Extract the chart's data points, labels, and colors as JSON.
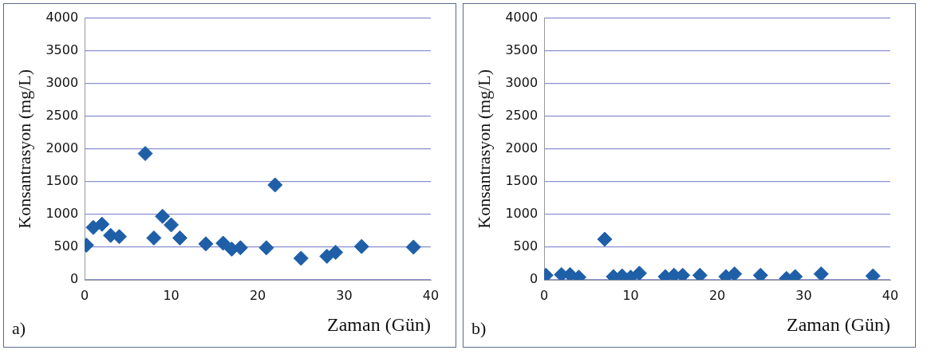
{
  "chart_data": [
    {
      "type": "scatter",
      "xlabel": "Zaman (Gün)",
      "ylabel": "Konsantrasyon (mg/L)",
      "annotations": [
        "a)"
      ],
      "x": [
        0.2,
        1,
        2,
        3,
        4,
        7,
        8,
        9,
        10,
        11,
        14,
        16,
        17,
        18,
        21,
        22,
        25,
        28,
        29,
        32,
        38
      ],
      "values": [
        530,
        800,
        850,
        680,
        660,
        1930,
        640,
        970,
        840,
        640,
        550,
        560,
        470,
        490,
        490,
        1450,
        330,
        360,
        420,
        510,
        500
      ],
      "color": "#1f5fa8",
      "marker": "diamond",
      "xlim": [
        0,
        40
      ],
      "xticks": [
        0,
        10,
        20,
        30,
        40
      ],
      "ylim": [
        0,
        4000
      ],
      "yticks": [
        0,
        500,
        1000,
        1500,
        2000,
        2500,
        3000,
        3500,
        4000
      ],
      "grid": "y"
    },
    {
      "type": "scatter",
      "xlabel": "Zaman (Gün)",
      "ylabel": "Konsantrasyon (mg/L)",
      "annotations": [
        "b)"
      ],
      "x": [
        0.2,
        2,
        3,
        4,
        7,
        8,
        9,
        10,
        11,
        14,
        15,
        16,
        18,
        21,
        22,
        25,
        28,
        29,
        32,
        38
      ],
      "values": [
        70,
        80,
        80,
        40,
        620,
        50,
        60,
        40,
        100,
        50,
        70,
        70,
        70,
        50,
        90,
        70,
        20,
        50,
        90,
        60
      ],
      "color": "#1f5fa8",
      "marker": "diamond",
      "xlim": [
        0,
        40
      ],
      "xticks": [
        0,
        10,
        20,
        30,
        40
      ],
      "ylim": [
        0,
        4000
      ],
      "yticks": [
        0,
        500,
        1000,
        1500,
        2000,
        2500,
        3000,
        3500,
        4000
      ],
      "grid": "y"
    }
  ]
}
